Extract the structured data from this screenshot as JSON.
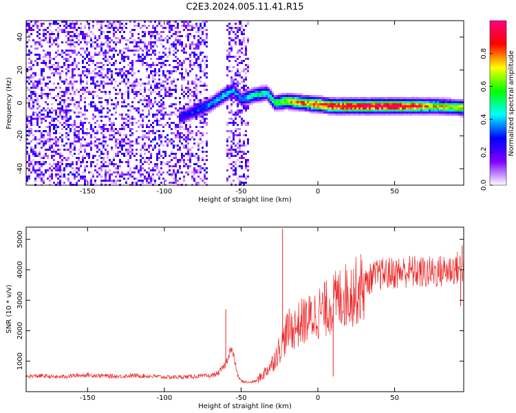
{
  "figure": {
    "title": "C2E3.2024.005.11.41.R15"
  },
  "chart_data": [
    {
      "type": "heatmap",
      "xlabel": "Height of straight line (km)",
      "ylabel": "Frequency (Hz)",
      "xlim": [
        -190,
        95
      ],
      "ylim": [
        -50,
        50
      ],
      "xticks": [
        -150,
        -100,
        -50,
        0,
        50
      ],
      "yticks": [
        -40,
        -20,
        0,
        20,
        40
      ],
      "colorbar": {
        "label": "Normalized spectral amplitude",
        "range": [
          0,
          1
        ],
        "ticks": [
          0.0,
          0.2,
          0.4,
          0.6,
          0.8
        ],
        "colormap": [
          "#ffffff",
          "#7f00ff",
          "#0000ff",
          "#00ffff",
          "#00ff00",
          "#ffff00",
          "#ff0000",
          "#ff007f"
        ]
      },
      "signal_track": [
        {
          "x": -90,
          "freq": -9,
          "amp": 0.25
        },
        {
          "x": -80,
          "freq": -5,
          "amp": 0.32
        },
        {
          "x": -70,
          "freq": -1,
          "amp": 0.38
        },
        {
          "x": -62,
          "freq": 4,
          "amp": 0.45
        },
        {
          "x": -55,
          "freq": 8,
          "amp": 0.4
        },
        {
          "x": -50,
          "freq": 2,
          "amp": 0.35
        },
        {
          "x": -40,
          "freq": 5,
          "amp": 0.5
        },
        {
          "x": -33,
          "freq": 6,
          "amp": 0.48
        },
        {
          "x": -28,
          "freq": 0,
          "amp": 0.55
        },
        {
          "x": -20,
          "freq": 1,
          "amp": 0.7
        },
        {
          "x": -10,
          "freq": 0,
          "amp": 0.8
        },
        {
          "x": 0,
          "freq": -1,
          "amp": 0.9
        },
        {
          "x": 10,
          "freq": -2,
          "amp": 0.95
        },
        {
          "x": 30,
          "freq": -2,
          "amp": 1.0
        },
        {
          "x": 55,
          "freq": -2,
          "amp": 1.0
        },
        {
          "x": 75,
          "freq": -2,
          "amp": 0.75
        },
        {
          "x": 95,
          "freq": -3,
          "amp": 0.7
        }
      ],
      "noise_region": {
        "x_range": [
          -190,
          -72
        ],
        "max_amp": 0.3
      },
      "noise_strip": {
        "x_range": [
          -60,
          -45
        ],
        "max_amp": 0.28
      }
    },
    {
      "type": "line",
      "xlabel": "Height of straight line (km)",
      "ylabel": "SNR (10 * v/v)",
      "xlim": [
        -190,
        95
      ],
      "ylim": [
        0,
        5400
      ],
      "xticks": [
        -150,
        -100,
        -50,
        0,
        50
      ],
      "yticks": [
        1000,
        2000,
        3000,
        4000,
        5000
      ],
      "series": [
        {
          "color": "#ee2222",
          "x": [
            -190,
            -180,
            -170,
            -160,
            -150,
            -140,
            -130,
            -120,
            -110,
            -100,
            -90,
            -80,
            -70,
            -65,
            -60,
            -57,
            -55,
            -52,
            -50,
            -45,
            -40,
            -35,
            -30,
            -25,
            -22,
            -20,
            -15,
            -10,
            -5,
            0,
            5,
            10,
            15,
            20,
            25,
            30,
            35,
            40,
            50,
            60,
            70,
            80,
            90,
            95
          ],
          "y": [
            500,
            520,
            480,
            520,
            550,
            520,
            500,
            530,
            510,
            480,
            480,
            500,
            520,
            600,
            900,
            1400,
            1200,
            500,
            350,
            300,
            350,
            600,
            900,
            1400,
            1700,
            2000,
            2100,
            2300,
            2400,
            2600,
            2700,
            2900,
            3100,
            3200,
            3300,
            3500,
            3750,
            3850,
            3900,
            3950,
            3900,
            3950,
            4050,
            4100
          ]
        }
      ],
      "spikes": [
        {
          "x": -23,
          "y": 5350
        },
        {
          "x": -60,
          "y": 2700
        },
        {
          "x": 10,
          "y": 500
        },
        {
          "x": 93,
          "y": 2800
        },
        {
          "x": 94,
          "y": 4800
        }
      ]
    }
  ]
}
